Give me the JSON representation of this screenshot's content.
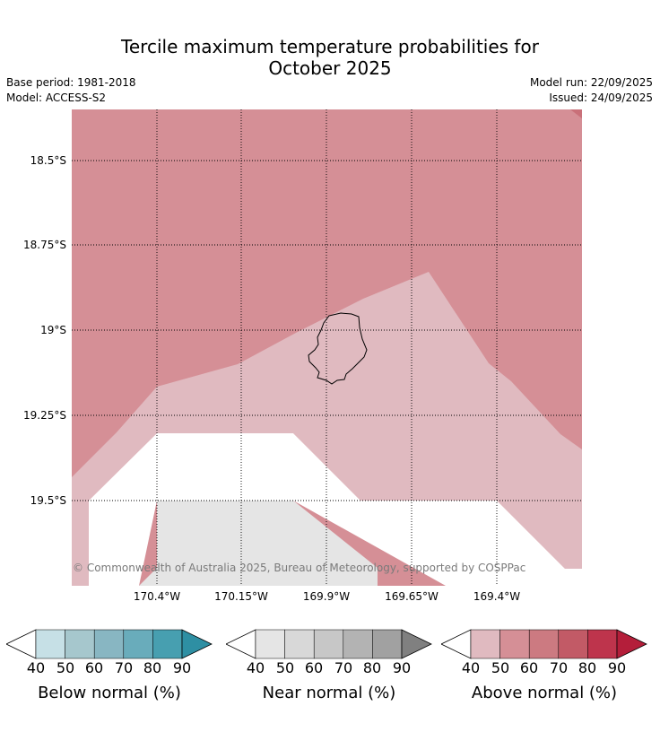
{
  "title": {
    "line1": "Tercile maximum temperature probabilities for",
    "line2": "October 2025"
  },
  "info": {
    "base_period": "Base period: 1981-2018",
    "model": "Model: ACCESS-S2",
    "model_run": "Model run: 22/09/2025",
    "issued": "Issued: 24/09/2025"
  },
  "map": {
    "lat_labels": [
      "18.5°S",
      "18.75°S",
      "19°S",
      "19.25°S",
      "19.5°S"
    ],
    "lon_labels": [
      "170.4°W",
      "170.15°W",
      "169.9°W",
      "169.65°W",
      "169.4°W"
    ],
    "gridlines": "dotted",
    "feature": "Niue island coastline",
    "copyright": "© Commonwealth of Australia 2025, Bureau of Meteorology, supported by COSPPac",
    "colors": {
      "above_50": "#d58f96",
      "above_40": "#e0bac0",
      "near_40": "#e5e5e5",
      "neutral": "#ffffff",
      "above_60_corner": "#c97079"
    }
  },
  "legends": [
    {
      "label": "Below normal (%)",
      "ticks": [
        "40",
        "50",
        "60",
        "70",
        "80",
        "90"
      ],
      "colors": [
        "#ffffff",
        "#c6e0e6",
        "#a6c7cd",
        "#88b6c2",
        "#69acbb",
        "#479fb0",
        "#2e8fa3"
      ]
    },
    {
      "label": "Near normal (%)",
      "ticks": [
        "40",
        "50",
        "60",
        "70",
        "80",
        "90"
      ],
      "colors": [
        "#ffffff",
        "#e5e5e5",
        "#d8d8d8",
        "#c7c7c7",
        "#b3b3b3",
        "#a1a1a1",
        "#808080"
      ]
    },
    {
      "label": "Above normal (%)",
      "ticks": [
        "40",
        "50",
        "60",
        "70",
        "80",
        "90"
      ],
      "colors": [
        "#ffffff",
        "#e0bac0",
        "#d58f96",
        "#cc7a81",
        "#c25a66",
        "#be344c",
        "#b41e3a"
      ]
    }
  ]
}
